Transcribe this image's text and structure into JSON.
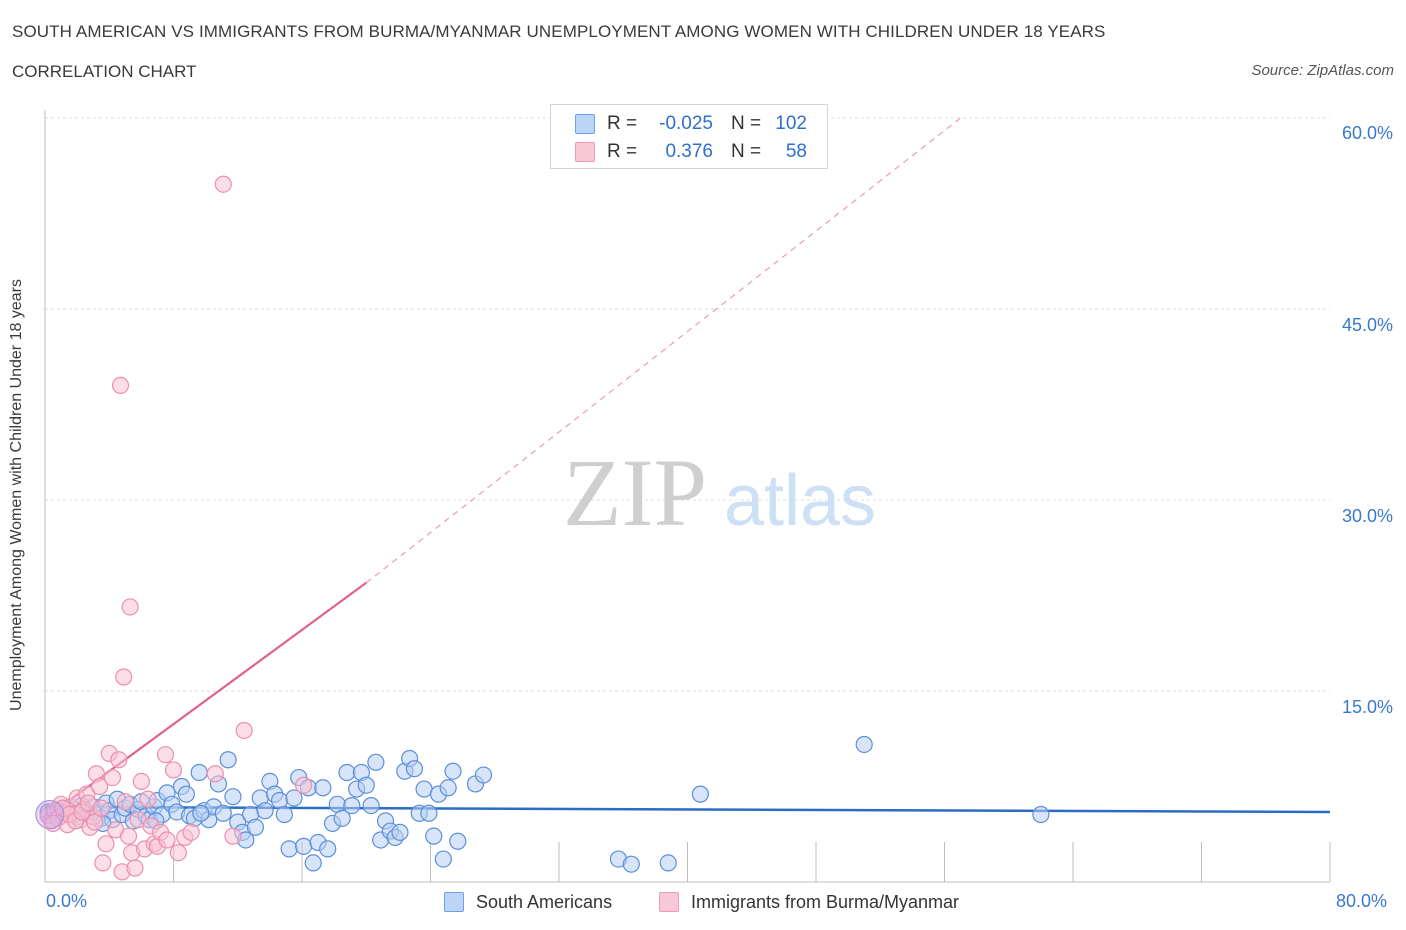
{
  "title": "SOUTH AMERICAN VS IMMIGRANTS FROM BURMA/MYANMAR UNEMPLOYMENT AMONG WOMEN WITH CHILDREN UNDER 18 YEARS",
  "subtitle": "CORRELATION CHART",
  "source": "Source: ZipAtlas.com",
  "watermark": {
    "zip": "ZIP",
    "atlas": "atlas"
  },
  "legend": {
    "rows": [
      {
        "r_label": "R =",
        "r_value": "-0.025",
        "n_label": "N =",
        "n_value": "102",
        "color": "#6fa0e6",
        "fill": "#bcd4f5"
      },
      {
        "r_label": "R =",
        "r_value": "0.376",
        "n_label": "N =",
        "n_value": "58",
        "color": "#ef9ab6",
        "fill": "#f8c8d7"
      }
    ]
  },
  "chart_data": {
    "type": "scatter",
    "title": "SOUTH AMERICAN VS IMMIGRANTS FROM BURMA/MYANMAR UNEMPLOYMENT AMONG WOMEN WITH CHILDREN UNDER 18 YEARS",
    "xlabel": "",
    "ylabel": "Unemployment Among Women with Children Under 18 years",
    "xlim": [
      0,
      80
    ],
    "ylim": [
      0,
      60
    ],
    "x_tick_labels": [
      "0.0%",
      "80.0%"
    ],
    "y_tick_labels": [
      "15.0%",
      "30.0%",
      "45.0%",
      "60.0%"
    ],
    "y_ticks": [
      15,
      30,
      45,
      60
    ],
    "series": [
      {
        "name": "South Americans",
        "color": "#5b8fd9",
        "fill": "#b8d0f3",
        "trend": {
          "x": [
            0,
            80
          ],
          "y": [
            5.9,
            5.5
          ],
          "color": "#2b6cc4"
        },
        "points": [
          [
            0.2,
            5.5
          ],
          [
            0.5,
            5.3
          ],
          [
            0.8,
            5.6
          ],
          [
            1.0,
            5.2
          ],
          [
            1.3,
            5.8
          ],
          [
            1.5,
            5.4
          ],
          [
            1.8,
            5.7
          ],
          [
            2.0,
            5.1
          ],
          [
            2.3,
            6.0
          ],
          [
            2.5,
            5.5
          ],
          [
            2.8,
            5.2
          ],
          [
            3.0,
            5.9
          ],
          [
            3.2,
            5.4
          ],
          [
            3.5,
            5.0
          ],
          [
            3.8,
            6.2
          ],
          [
            4.0,
            5.6
          ],
          [
            4.2,
            4.9
          ],
          [
            4.5,
            6.5
          ],
          [
            4.8,
            5.3
          ],
          [
            5.0,
            5.8
          ],
          [
            5.3,
            6.1
          ],
          [
            5.5,
            4.8
          ],
          [
            5.8,
            5.7
          ],
          [
            6.0,
            6.3
          ],
          [
            6.3,
            5.2
          ],
          [
            6.5,
            4.9
          ],
          [
            6.8,
            5.9
          ],
          [
            7.0,
            6.4
          ],
          [
            7.3,
            5.3
          ],
          [
            7.6,
            7.0
          ],
          [
            7.9,
            6.1
          ],
          [
            8.2,
            5.5
          ],
          [
            8.5,
            7.5
          ],
          [
            8.8,
            6.9
          ],
          [
            9.0,
            5.2
          ],
          [
            9.3,
            5.0
          ],
          [
            9.6,
            8.6
          ],
          [
            9.9,
            5.6
          ],
          [
            10.2,
            4.9
          ],
          [
            10.5,
            5.9
          ],
          [
            10.8,
            7.7
          ],
          [
            11.1,
            5.4
          ],
          [
            11.4,
            9.6
          ],
          [
            11.7,
            6.7
          ],
          [
            12.0,
            4.7
          ],
          [
            12.3,
            3.9
          ],
          [
            12.5,
            3.3
          ],
          [
            12.8,
            5.3
          ],
          [
            13.1,
            4.3
          ],
          [
            13.4,
            6.6
          ],
          [
            13.7,
            5.6
          ],
          [
            14.0,
            7.9
          ],
          [
            14.3,
            6.9
          ],
          [
            14.6,
            6.4
          ],
          [
            14.9,
            5.3
          ],
          [
            15.2,
            2.6
          ],
          [
            15.5,
            6.6
          ],
          [
            15.8,
            8.2
          ],
          [
            16.1,
            2.8
          ],
          [
            16.4,
            7.4
          ],
          [
            16.7,
            1.5
          ],
          [
            17.0,
            3.1
          ],
          [
            17.3,
            7.4
          ],
          [
            17.6,
            2.6
          ],
          [
            17.9,
            4.6
          ],
          [
            18.2,
            6.1
          ],
          [
            18.5,
            5.0
          ],
          [
            18.8,
            8.6
          ],
          [
            19.1,
            6.0
          ],
          [
            19.4,
            7.3
          ],
          [
            19.7,
            8.6
          ],
          [
            20.0,
            7.6
          ],
          [
            20.3,
            6.0
          ],
          [
            20.6,
            9.4
          ],
          [
            20.9,
            3.3
          ],
          [
            21.2,
            4.8
          ],
          [
            21.5,
            4.0
          ],
          [
            21.8,
            3.5
          ],
          [
            22.1,
            3.9
          ],
          [
            22.4,
            8.7
          ],
          [
            22.7,
            9.7
          ],
          [
            23.0,
            8.9
          ],
          [
            23.3,
            5.4
          ],
          [
            23.6,
            7.3
          ],
          [
            23.9,
            5.4
          ],
          [
            24.2,
            3.6
          ],
          [
            24.5,
            6.9
          ],
          [
            24.8,
            1.8
          ],
          [
            25.1,
            7.4
          ],
          [
            25.4,
            8.7
          ],
          [
            25.7,
            3.2
          ],
          [
            26.8,
            7.7
          ],
          [
            27.3,
            8.4
          ],
          [
            35.7,
            1.8
          ],
          [
            36.5,
            1.4
          ],
          [
            38.8,
            1.5
          ],
          [
            40.8,
            6.9
          ],
          [
            51.0,
            10.8
          ],
          [
            62.0,
            5.3
          ],
          [
            3.6,
            4.6
          ],
          [
            6.9,
            4.8
          ],
          [
            9.7,
            5.4
          ]
        ]
      },
      {
        "name": "Immigrants from Burma/Myanmar",
        "color": "#ec8fae",
        "fill": "#f8c3d4",
        "trend": {
          "x": [
            0,
            20
          ],
          "y": [
            5.0,
            23.5
          ],
          "color": "#e0628e"
        },
        "trend_extension": {
          "x": [
            20,
            57
          ],
          "y": [
            23.5,
            60.0
          ]
        },
        "points": [
          [
            0.2,
            5.2
          ],
          [
            0.4,
            4.8
          ],
          [
            0.6,
            5.6
          ],
          [
            0.8,
            5.0
          ],
          [
            1.0,
            6.1
          ],
          [
            1.2,
            5.4
          ],
          [
            1.4,
            4.5
          ],
          [
            1.6,
            5.9
          ],
          [
            1.8,
            5.3
          ],
          [
            2.0,
            6.6
          ],
          [
            2.2,
            4.9
          ],
          [
            2.4,
            5.7
          ],
          [
            2.6,
            6.9
          ],
          [
            2.8,
            4.3
          ],
          [
            3.0,
            5.1
          ],
          [
            3.2,
            8.5
          ],
          [
            3.4,
            7.5
          ],
          [
            3.6,
            1.5
          ],
          [
            3.8,
            3.0
          ],
          [
            4.0,
            10.1
          ],
          [
            4.2,
            8.2
          ],
          [
            4.4,
            4.1
          ],
          [
            4.6,
            9.6
          ],
          [
            4.8,
            0.8
          ],
          [
            5.0,
            6.3
          ],
          [
            5.2,
            3.6
          ],
          [
            5.4,
            2.3
          ],
          [
            5.6,
            1.1
          ],
          [
            5.8,
            4.9
          ],
          [
            6.0,
            7.9
          ],
          [
            6.2,
            2.6
          ],
          [
            6.4,
            6.5
          ],
          [
            6.6,
            4.4
          ],
          [
            6.8,
            3.0
          ],
          [
            7.0,
            2.8
          ],
          [
            7.2,
            3.9
          ],
          [
            7.6,
            3.3
          ],
          [
            8.0,
            8.8
          ],
          [
            8.3,
            2.3
          ],
          [
            8.7,
            3.5
          ],
          [
            4.7,
            39.0
          ],
          [
            5.3,
            21.6
          ],
          [
            4.9,
            16.1
          ],
          [
            11.1,
            54.8
          ],
          [
            7.5,
            10.0
          ],
          [
            12.4,
            11.9
          ],
          [
            10.6,
            8.5
          ],
          [
            11.7,
            3.6
          ],
          [
            0.5,
            4.6
          ],
          [
            1.1,
            5.8
          ],
          [
            1.5,
            5.3
          ],
          [
            1.9,
            4.8
          ],
          [
            2.3,
            5.5
          ],
          [
            2.7,
            6.2
          ],
          [
            3.1,
            4.7
          ],
          [
            3.5,
            5.8
          ],
          [
            16.1,
            7.6
          ],
          [
            9.1,
            3.9
          ]
        ]
      }
    ],
    "legend_position": "top-center",
    "bottom_legend": [
      "South Americans",
      "Immigrants from Burma/Myanmar"
    ]
  }
}
